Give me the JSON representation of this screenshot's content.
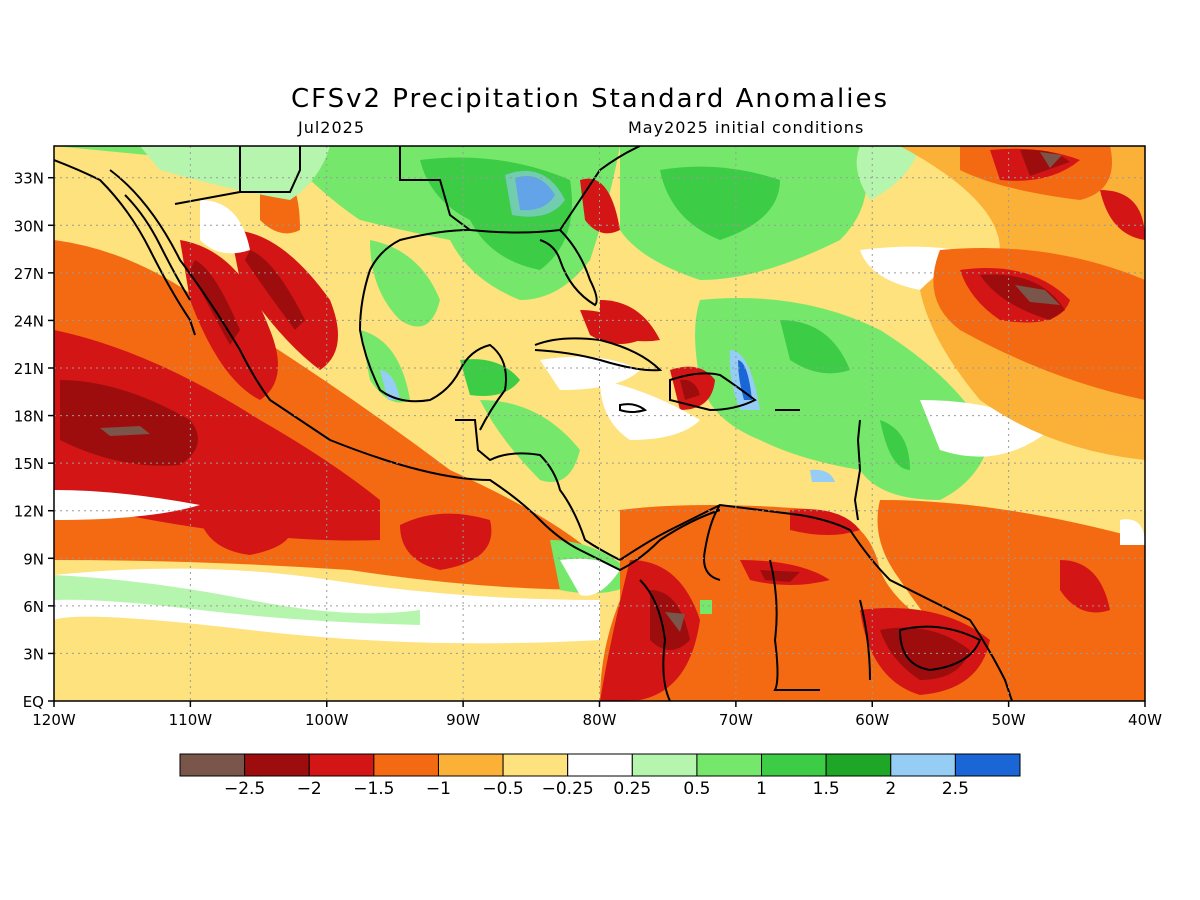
{
  "title": "CFSv2 Precipitation Standard Anomalies",
  "valid_month": "Jul2025",
  "initial_conditions": "May2025 initial conditions",
  "chart_data": {
    "type": "heatmap",
    "map_region": {
      "lon_range": [
        -120,
        -40
      ],
      "lat_range": [
        0,
        35
      ]
    },
    "lat_ticks": [
      {
        "value": 0,
        "label": "EQ"
      },
      {
        "value": 3,
        "label": "3N"
      },
      {
        "value": 6,
        "label": "6N"
      },
      {
        "value": 9,
        "label": "9N"
      },
      {
        "value": 12,
        "label": "12N"
      },
      {
        "value": 15,
        "label": "15N"
      },
      {
        "value": 18,
        "label": "18N"
      },
      {
        "value": 21,
        "label": "21N"
      },
      {
        "value": 24,
        "label": "24N"
      },
      {
        "value": 27,
        "label": "27N"
      },
      {
        "value": 30,
        "label": "30N"
      },
      {
        "value": 33,
        "label": "33N"
      }
    ],
    "lon_ticks": [
      {
        "value": -120,
        "label": "120W"
      },
      {
        "value": -110,
        "label": "110W"
      },
      {
        "value": -100,
        "label": "100W"
      },
      {
        "value": -90,
        "label": "90W"
      },
      {
        "value": -80,
        "label": "80W"
      },
      {
        "value": -70,
        "label": "70W"
      },
      {
        "value": -60,
        "label": "60W"
      },
      {
        "value": -50,
        "label": "50W"
      },
      {
        "value": -40,
        "label": "40W"
      }
    ],
    "color_scale": {
      "colors": [
        "#7a554a",
        "#9e0d0d",
        "#d41515",
        "#f36a13",
        "#fbb038",
        "#fde27d",
        "#ffffff",
        "#b6f5ad",
        "#75e86c",
        "#3dcc45",
        "#1ea726",
        "#95cdf5",
        "#1a66d6"
      ],
      "labels": [
        "−2.5",
        "−2",
        "−1.5",
        "−1",
        "−0.5",
        "−0.25",
        "0.25",
        "0.5",
        "1",
        "1.5",
        "2",
        "2.5"
      ]
    },
    "anomaly_regions": [
      {
        "lon": -112,
        "lat": 17,
        "value": -2.2,
        "note": "eastern Pacific west of Mexico"
      },
      {
        "lon": -105,
        "lat": 11,
        "value": -1.8,
        "note": "eastern Pacific"
      },
      {
        "lon": -92,
        "lat": 11,
        "value": -1.6,
        "note": "eastern Pacific off Central America"
      },
      {
        "lon": -107,
        "lat": 25,
        "value": -1.6,
        "note": "Sierra Madre Occidental"
      },
      {
        "lon": -103,
        "lat": 25,
        "value": -1.7,
        "note": "northern Mexico"
      },
      {
        "lon": -89,
        "lat": 27,
        "value": 1.2,
        "note": "Gulf of Mexico"
      },
      {
        "lon": -84,
        "lat": 31,
        "value": 1.6,
        "note": "southeastern United States"
      },
      {
        "lon": -83,
        "lat": 32,
        "value": 2.6,
        "note": "Georgia"
      },
      {
        "lon": -69,
        "lat": 20,
        "value": 1.4,
        "note": "north of Hispaniola"
      },
      {
        "lon": -69,
        "lat": 20.5,
        "value": 2.5,
        "note": "north of Hispaniola core"
      },
      {
        "lon": -73,
        "lat": 19,
        "value": -2.0,
        "note": "Hispaniola west"
      },
      {
        "lon": -77,
        "lat": 23,
        "value": -1.5,
        "note": "Bahamas south"
      },
      {
        "lon": -66,
        "lat": 17,
        "value": 1.2,
        "note": "eastern Caribbean"
      },
      {
        "lon": -75,
        "lat": 6,
        "value": -2.0,
        "note": "Colombia"
      },
      {
        "lon": -55,
        "lat": 4,
        "value": -2.2,
        "note": "Guianas"
      },
      {
        "lon": -50,
        "lat": 32,
        "value": -1.5,
        "note": "central Atlantic north"
      },
      {
        "lon": -47,
        "lat": 25,
        "value": -2.2,
        "note": "central Atlantic"
      },
      {
        "lon": -45,
        "lat": 15,
        "value": -0.7,
        "note": "tropical Atlantic"
      },
      {
        "lon": -105,
        "lat": 6,
        "value": 0.6,
        "note": "ITCZ band south of 8N"
      },
      {
        "lon": -95,
        "lat": 2,
        "value": -0.3,
        "note": "equatorial eastern Pacific"
      },
      {
        "lon": -83,
        "lat": 15,
        "value": -0.6,
        "note": "western Caribbean"
      },
      {
        "lon": -56,
        "lat": 25,
        "value": 0.0,
        "note": "subtropical Atlantic"
      },
      {
        "lon": -70,
        "lat": 28,
        "value": 0.8,
        "note": "western Atlantic"
      }
    ]
  },
  "colors": {
    "frame": "#000000",
    "grid": "#9a9a9a",
    "coastline": "#000000"
  }
}
